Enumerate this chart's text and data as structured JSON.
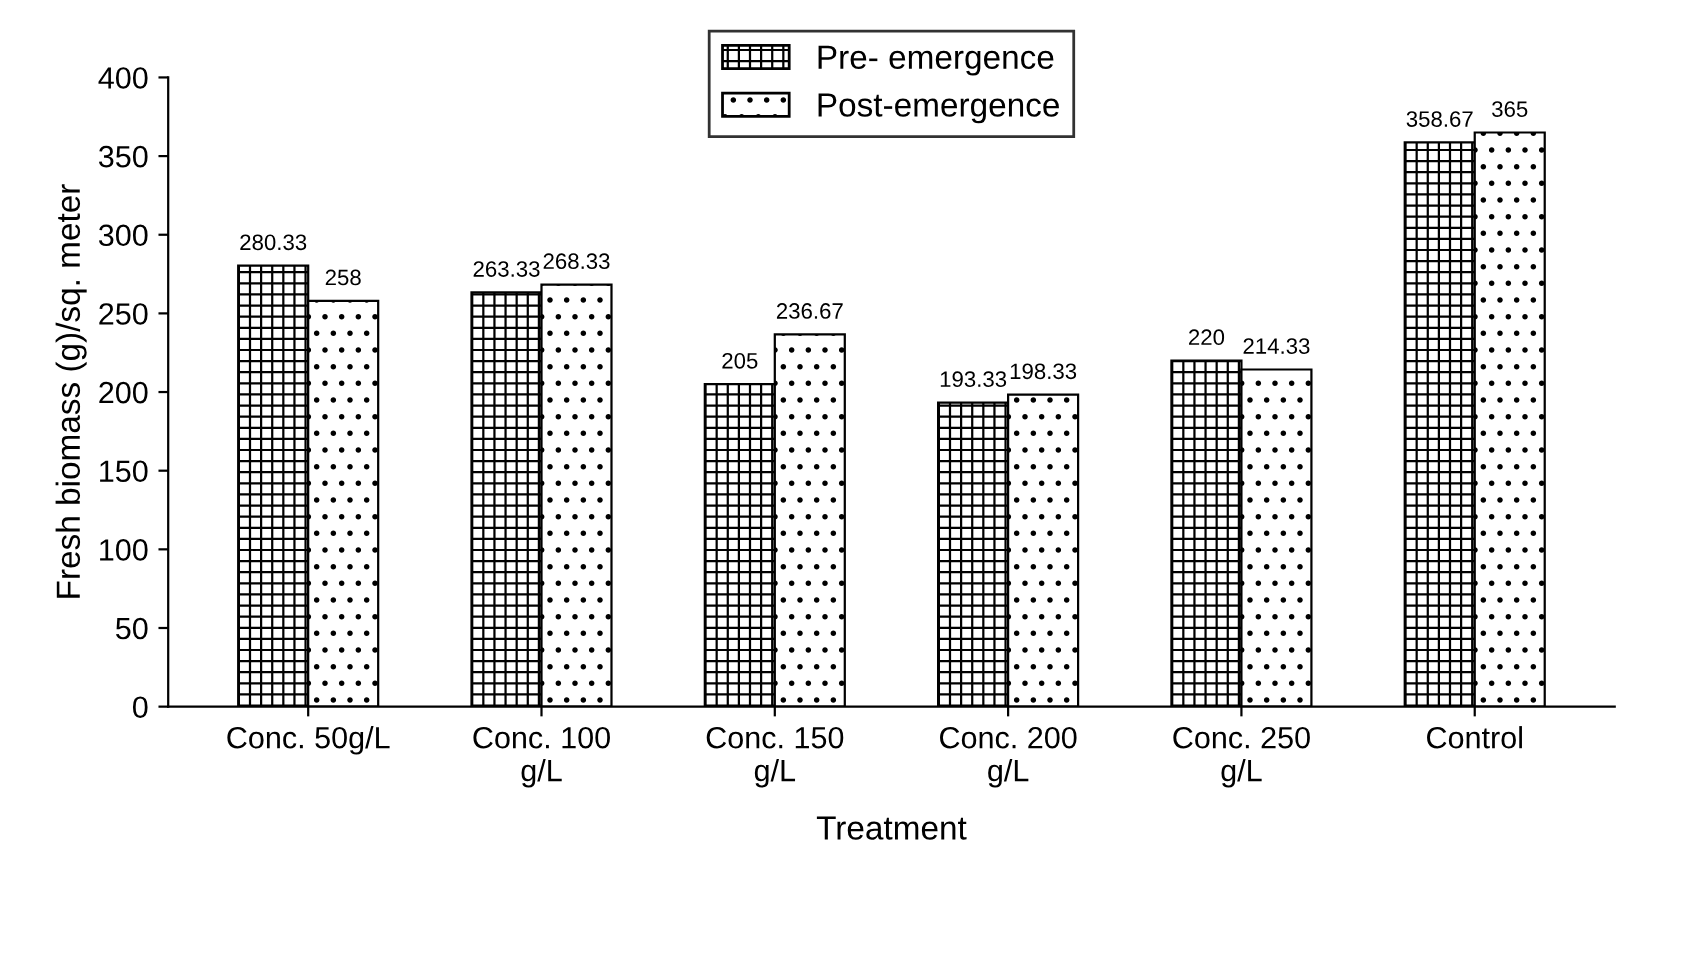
{
  "chart_data": {
    "type": "bar",
    "xlabel": "Treatment",
    "ylabel": "Fresh biomass (g)/sq. meter",
    "categories": [
      "Conc. 50g/L",
      "Conc. 100\ng/L",
      "Conc. 150\ng/L",
      "Conc. 200\ng/L",
      "Conc. 250\ng/L",
      "Control"
    ],
    "series": [
      {
        "name": "Pre- emergence",
        "color": "#000000",
        "values": [
          280.33,
          263.33,
          205,
          193.33,
          220,
          358.67
        ]
      },
      {
        "name": "Post-emergence",
        "color": "#000000",
        "values": [
          258,
          268.33,
          236.67,
          198.33,
          214.33,
          365
        ]
      }
    ],
    "ylim": [
      0,
      400
    ],
    "yticks": [
      0,
      50,
      100,
      150,
      200,
      250,
      300,
      350,
      400
    ],
    "grid": false,
    "legend": "top",
    "data_labels": true
  }
}
